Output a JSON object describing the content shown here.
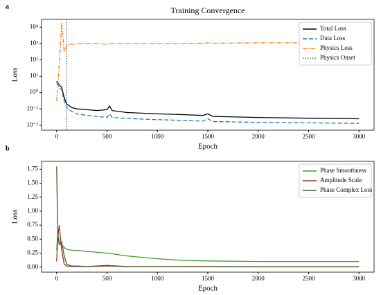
{
  "chart_data": [
    {
      "type": "line",
      "panel": "a",
      "title": "Training Convergence",
      "xlabel": "Epoch",
      "ylabel": "Loss",
      "log_y": true,
      "legend": "upper right",
      "xlim": [
        -150,
        3150
      ],
      "xticks": [
        0,
        500,
        1000,
        1500,
        2000,
        2500,
        3000
      ],
      "ylim": [
        0.005,
        30000
      ],
      "yticks": [
        {
          "value": 0.01,
          "label": "10⁻²"
        },
        {
          "value": 0.1,
          "label": "10⁻¹"
        },
        {
          "value": 1,
          "label": "10⁰"
        },
        {
          "value": 10,
          "label": "10¹"
        },
        {
          "value": 100,
          "label": "10²"
        },
        {
          "value": 1000,
          "label": "10³"
        },
        {
          "value": 10000,
          "label": "10⁴"
        }
      ],
      "x": [
        0,
        25,
        50,
        75,
        100,
        150,
        200,
        300,
        400,
        500,
        525,
        550,
        700,
        1000,
        1250,
        1450,
        1500,
        1550,
        2000,
        2500,
        3000
      ],
      "series": [
        {
          "name": "Total Loss",
          "color": "#000000",
          "linestyle": "solid",
          "values": [
            5,
            3,
            2,
            0.5,
            0.2,
            0.12,
            0.1,
            0.09,
            0.08,
            0.09,
            0.15,
            0.08,
            0.06,
            0.05,
            0.045,
            0.04,
            0.05,
            0.035,
            0.03,
            0.027,
            0.025
          ]
        },
        {
          "name": "Data Loss",
          "color": "#1f77b4",
          "linestyle": "dashed",
          "values": [
            4,
            2,
            1.5,
            0.3,
            0.12,
            0.07,
            0.05,
            0.04,
            0.035,
            0.03,
            0.05,
            0.03,
            0.026,
            0.022,
            0.02,
            0.018,
            0.025,
            0.017,
            0.015,
            0.014,
            0.013
          ]
        },
        {
          "name": "Physics Loss",
          "color": "#ff7f0e",
          "linestyle": "dashdot",
          "values": [
            0.3,
            50,
            20000,
            300,
            800,
            900,
            950,
            1000,
            1000,
            900,
            950,
            1000,
            1000,
            1000,
            1000,
            1050,
            1100,
            1050,
            1100,
            1100,
            1150
          ]
        }
      ],
      "vlines": [
        {
          "name": "Physics Onset",
          "x": 100,
          "color": "#666666",
          "linestyle": "dotted"
        }
      ]
    },
    {
      "type": "line",
      "panel": "b",
      "xlabel": "Epoch",
      "ylabel": "Loss",
      "log_y": false,
      "legend": "upper right",
      "xlim": [
        -150,
        3150
      ],
      "xticks": [
        0,
        500,
        1000,
        1500,
        2000,
        2500,
        3000
      ],
      "ylim": [
        -0.09,
        1.89
      ],
      "yticks": [
        {
          "value": 0,
          "label": "0.00"
        },
        {
          "value": 0.25,
          "label": "0.25"
        },
        {
          "value": 0.5,
          "label": "0.50"
        },
        {
          "value": 0.75,
          "label": "0.75"
        },
        {
          "value": 1,
          "label": "1.00"
        },
        {
          "value": 1.25,
          "label": "1.25"
        },
        {
          "value": 1.5,
          "label": "1.50"
        },
        {
          "value": 1.75,
          "label": "1.75"
        }
      ],
      "x": [
        0,
        10,
        25,
        50,
        75,
        100,
        150,
        200,
        300,
        500,
        700,
        1000,
        1250,
        1500,
        2000,
        2500,
        3000
      ],
      "series": [
        {
          "name": "Phase Smoothness",
          "color": "#3f9a2a",
          "linestyle": "solid",
          "values": [
            0.3,
            0.6,
            0.45,
            0.4,
            0.35,
            0.32,
            0.3,
            0.3,
            0.28,
            0.25,
            0.2,
            0.15,
            0.12,
            0.11,
            0.1,
            0.1,
            0.1
          ]
        },
        {
          "name": "Amplitude Scale",
          "color": "#8c3b1e",
          "linestyle": "solid",
          "values": [
            0.1,
            0.5,
            0.75,
            0.3,
            0.05,
            0.02,
            0.01,
            0.01,
            0.01,
            0.02,
            0.01,
            0.01,
            0.01,
            0.01,
            0.005,
            0.005,
            0.005
          ]
        },
        {
          "name": "Phase Complex Loss",
          "color": "#4d5a2a",
          "linestyle": "solid",
          "values": [
            1.8,
            0.6,
            0.4,
            0.45,
            0.2,
            0.05,
            0.02,
            0.02,
            0.01,
            0.03,
            0.01,
            0.01,
            0.01,
            0.01,
            0.005,
            0.005,
            0.005
          ]
        }
      ]
    }
  ]
}
